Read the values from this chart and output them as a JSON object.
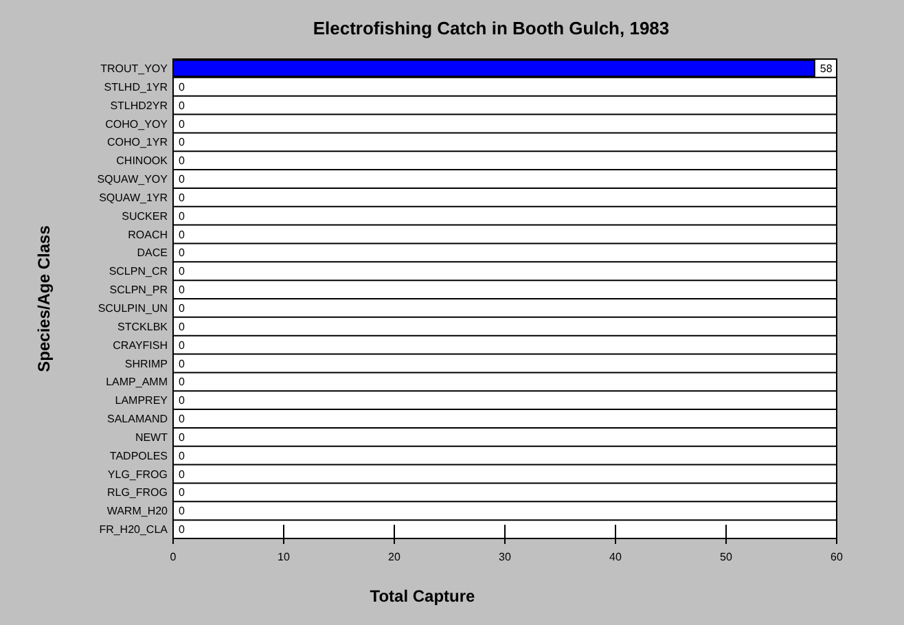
{
  "chart_data": {
    "type": "bar",
    "orientation": "horizontal",
    "title": "Electrofishing Catch in Booth Gulch, 1983",
    "xlabel": "Total Capture",
    "ylabel": "Species/Age Class",
    "categories": [
      "TROUT_YOY",
      "STLHD_1YR",
      "STLHD2YR",
      "COHO_YOY",
      "COHO_1YR",
      "CHINOOK",
      "SQUAW_YOY",
      "SQUAW_1YR",
      "SUCKER",
      "ROACH",
      "DACE",
      "SCLPN_CR",
      "SCLPN_PR",
      "SCULPIN_UN",
      "STCKLBK",
      "CRAYFISH",
      "SHRIMP",
      "LAMP_AMM",
      "LAMPREY",
      "SALAMAND",
      "NEWT",
      "TADPOLES",
      "YLG_FROG",
      "RLG_FROG",
      "WARM_H20",
      "FR_H20_CLA"
    ],
    "values": [
      58,
      0,
      0,
      0,
      0,
      0,
      0,
      0,
      0,
      0,
      0,
      0,
      0,
      0,
      0,
      0,
      0,
      0,
      0,
      0,
      0,
      0,
      0,
      0,
      0,
      0
    ],
    "color": "#0000ff",
    "xlim": [
      0,
      60
    ],
    "xticks": [
      0,
      10,
      20,
      30,
      40,
      50,
      60
    ],
    "grid": "y",
    "data_labels": true
  }
}
